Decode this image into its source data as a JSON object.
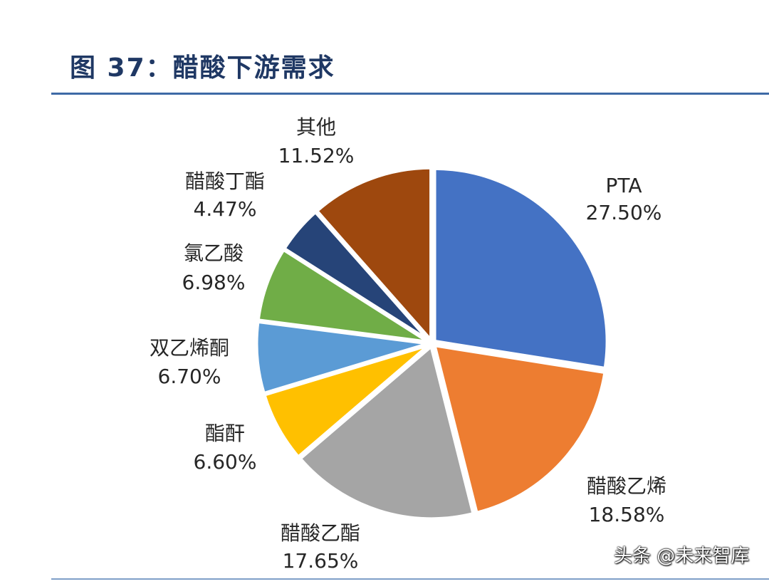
{
  "figure_title": "图 37：醋酸下游需求",
  "watermark": "头条 @未来智库",
  "chart_data": {
    "type": "pie",
    "title": "",
    "unit": "%",
    "slices": [
      {
        "label": "PTA",
        "value": 27.5,
        "value_label": "27.50%",
        "color": "#4472c4"
      },
      {
        "label": "醋酸乙烯",
        "value": 18.58,
        "value_label": "18.58%",
        "color": "#ed7d31"
      },
      {
        "label": "醋酸乙酯",
        "value": 17.65,
        "value_label": "17.65%",
        "color": "#a5a5a5"
      },
      {
        "label": "酯酐",
        "value": 6.6,
        "value_label": "6.60%",
        "color": "#ffc000"
      },
      {
        "label": "双乙烯酮",
        "value": 6.7,
        "value_label": "6.70%",
        "color": "#5b9bd5"
      },
      {
        "label": "氯乙酸",
        "value": 6.98,
        "value_label": "6.98%",
        "color": "#70ad47"
      },
      {
        "label": "醋酸丁酯",
        "value": 4.47,
        "value_label": "4.47%",
        "color": "#264478"
      },
      {
        "label": "其他",
        "value": 11.52,
        "value_label": "11.52%",
        "color": "#9e480e"
      }
    ],
    "start": "12 o'clock",
    "direction": "clockwise",
    "exploded": true,
    "legend": "none"
  }
}
